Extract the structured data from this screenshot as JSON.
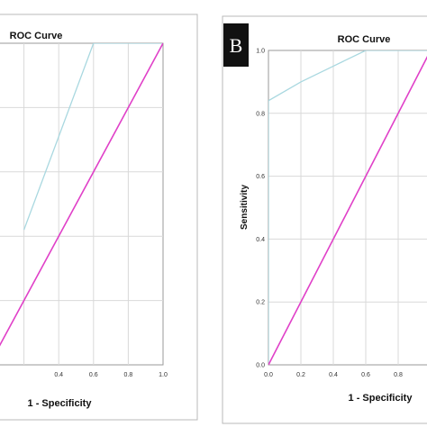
{
  "chart_data": [
    {
      "type": "line",
      "panel": "",
      "title": "ROC Curve",
      "xlabel": "1 - Specificity",
      "ylabel": "",
      "xlim": [
        0,
        1
      ],
      "ylim": [
        0,
        1
      ],
      "x_ticks": [
        "0.4",
        "0.6",
        "0.8",
        "1.0"
      ],
      "x_tick_values": [
        0.4,
        0.6,
        0.8,
        1.0
      ],
      "y_ticks": [],
      "grid": true,
      "colors": {
        "roc": "#a9d8e0",
        "reference": "#e040c8"
      },
      "series": [
        {
          "role": "roc",
          "x": [
            0.2,
            0.6,
            1.0
          ],
          "y": [
            0.42,
            1.0,
            1.0
          ]
        },
        {
          "role": "reference",
          "x": [
            0.0,
            1.0
          ],
          "y": [
            0.0,
            1.0
          ]
        }
      ]
    },
    {
      "type": "line",
      "panel": "B",
      "title": "ROC Curve",
      "xlabel": "1 - Specificity",
      "ylabel": "Sensitivity",
      "xlim": [
        0,
        1
      ],
      "ylim": [
        0,
        1
      ],
      "x_ticks": [
        "0.0",
        "0.2",
        "0.4",
        "0.6",
        "0.8"
      ],
      "x_tick_values": [
        0.0,
        0.2,
        0.4,
        0.6,
        0.8
      ],
      "y_ticks": [
        "0.0",
        "0.2",
        "0.4",
        "0.6",
        "0.8",
        "1.0"
      ],
      "y_tick_values": [
        0.0,
        0.2,
        0.4,
        0.6,
        0.8,
        1.0
      ],
      "grid": true,
      "colors": {
        "roc": "#a9d8e0",
        "reference": "#e040c8",
        "badge": "#111111"
      },
      "series": [
        {
          "role": "roc",
          "x": [
            0.0,
            0.0,
            0.2,
            0.4,
            0.6,
            1.0
          ],
          "y": [
            0.0,
            0.84,
            0.9,
            0.95,
            1.0,
            1.0
          ]
        },
        {
          "role": "reference",
          "x": [
            0.0,
            1.0
          ],
          "y": [
            0.0,
            1.0
          ]
        }
      ]
    }
  ]
}
